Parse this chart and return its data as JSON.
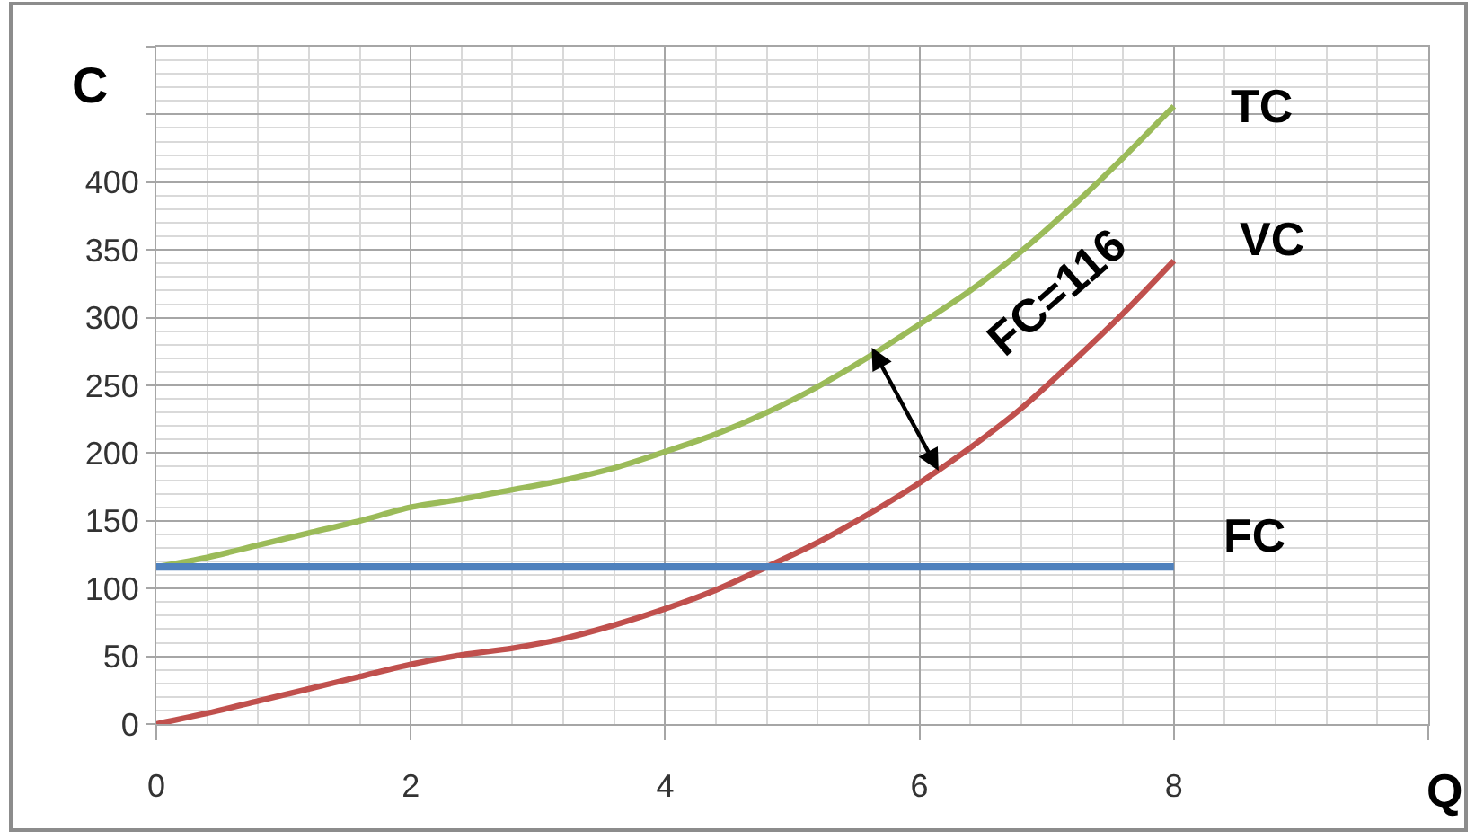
{
  "chart_data": {
    "type": "line",
    "xlabel": "Q",
    "ylabel": "C",
    "x": [
      0,
      0.4,
      0.8,
      1.2,
      1.6,
      2.0,
      2.4,
      2.8,
      3.2,
      3.6,
      4.0,
      4.4,
      4.8,
      5.2,
      5.6,
      6.0,
      6.4,
      6.8,
      7.2,
      7.6,
      8.0
    ],
    "xlim": [
      0,
      10
    ],
    "xticks": [
      0,
      2,
      4,
      6,
      8,
      {
        "value": 10,
        "label": null
      }
    ],
    "ylim": [
      0,
      500
    ],
    "yticks": [
      0,
      50,
      100,
      150,
      200,
      250,
      300,
      350,
      400,
      {
        "value": 450,
        "label": null
      },
      {
        "value": 500,
        "label": null
      }
    ],
    "grid": true,
    "series": [
      {
        "name": "TC",
        "color": "#9bbb59",
        "values": [
          116,
          123,
          132,
          141,
          150,
          160,
          166,
          173,
          180,
          189,
          201,
          214,
          230,
          249,
          271,
          295,
          320,
          349,
          382,
          418,
          456
        ]
      },
      {
        "name": "VC",
        "color": "#c0504d",
        "values": [
          0,
          8,
          17,
          26,
          35,
          44,
          51,
          56,
          63,
          73,
          85,
          99,
          116,
          134,
          155,
          178,
          204,
          233,
          267,
          303,
          342
        ]
      },
      {
        "name": "FC",
        "color": "#4f81bd",
        "values": [
          116,
          116,
          116,
          116,
          116,
          116,
          116,
          116,
          116,
          116,
          116,
          116,
          116,
          116,
          116,
          116,
          116,
          116,
          116,
          116,
          116
        ]
      }
    ],
    "annotations": [
      {
        "text": "FC=116",
        "x": 6.15,
        "y": 187
      }
    ]
  }
}
